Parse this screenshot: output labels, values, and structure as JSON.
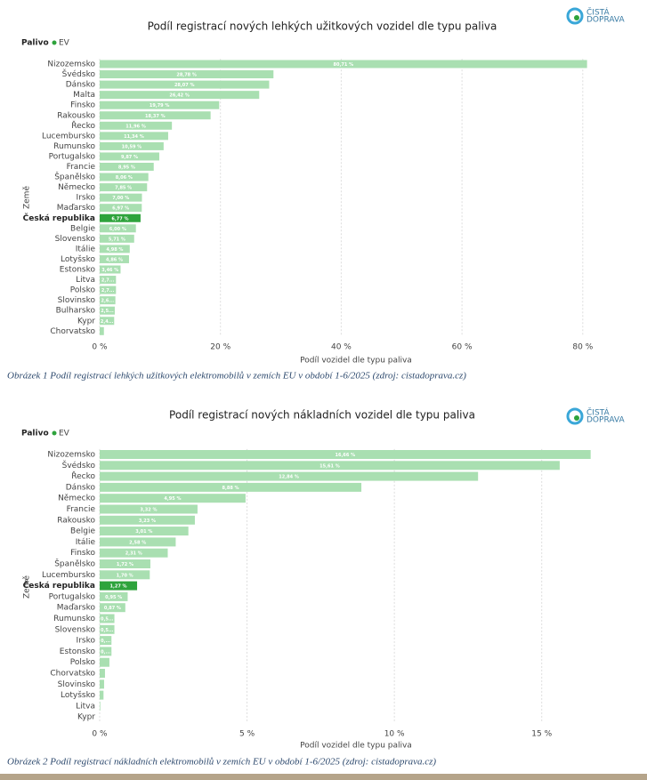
{
  "chart_data": [
    {
      "type": "bar",
      "orientation": "horizontal",
      "title": "Podíl registrací nových lehkých užitkových vozidel dle typu paliva",
      "legend_title": "Palivo",
      "logo": [
        "ČISTÁ",
        "DOPRAVA"
      ],
      "xlabel": "Podíl vozidel dle typu paliva",
      "ylabel": "Země",
      "categories": [
        "Nizozemsko",
        "Švédsko",
        "Dánsko",
        "Malta",
        "Finsko",
        "Rakousko",
        "Řecko",
        "Lucembursko",
        "Rumunsko",
        "Portugalsko",
        "Francie",
        "Španělsko",
        "Německo",
        "Irsko",
        "Maďarsko",
        "Česká republika",
        "Belgie",
        "Slovensko",
        "Itálie",
        "Lotyšsko",
        "Estonsko",
        "Litva",
        "Polsko",
        "Slovinsko",
        "Bulharsko",
        "Kypr",
        "Chorvatsko"
      ],
      "series": [
        {
          "name": "EV",
          "color": "#a9dfb1",
          "values": [
            80.71,
            28.78,
            28.07,
            26.42,
            19.79,
            18.37,
            11.96,
            11.34,
            10.59,
            9.87,
            8.95,
            8.06,
            7.85,
            7.0,
            6.97,
            6.77,
            6.0,
            5.71,
            4.98,
            4.86,
            3.46,
            2.7,
            2.7,
            2.6,
            2.5,
            2.4,
            0.7
          ],
          "value_labels": [
            "80,71 %",
            "28,78 %",
            "28,07 %",
            "26,42 %",
            "19,79 %",
            "18,37 %",
            "11,96 %",
            "11,34 %",
            "10,59 %",
            "9,87 %",
            "8,95 %",
            "8,06 %",
            "7,85 %",
            "7,00 %",
            "6,97 %",
            "6,77 %",
            "6,00 %",
            "5,71 %",
            "4,98 %",
            "4,86 %",
            "3,46 %",
            "2,7...",
            "2,7...",
            "2,6...",
            "2,5...",
            "2,4...",
            null
          ]
        }
      ],
      "highlight_category": "Česká republika",
      "highlight_color": "#2ea33c",
      "xlim": [
        0,
        81.5
      ],
      "xticks": [
        {
          "value": 0,
          "label": "0 %"
        },
        {
          "value": 20,
          "label": "20 %"
        },
        {
          "value": 40,
          "label": "40 %"
        },
        {
          "value": 60,
          "label": "60 %"
        },
        {
          "value": 80,
          "label": "80 %"
        }
      ],
      "grid": true,
      "caption": "Obrázek 1 Podíl registrací lehkých užitkových elektromobilů v zemích EU v období 1-6/2025 (zdroj: cistadoprava.cz)"
    },
    {
      "type": "bar",
      "orientation": "horizontal",
      "title": "Podíl registrací nových nákladních vozidel dle typu paliva",
      "legend_title": "Palivo",
      "logo": [
        "ČISTÁ",
        "DOPRAVA"
      ],
      "xlabel": "Podíl vozidel dle typu paliva",
      "ylabel": "Země",
      "categories": [
        "Nizozemsko",
        "Švédsko",
        "Řecko",
        "Dánsko",
        "Německo",
        "Francie",
        "Rakousko",
        "Belgie",
        "Itálie",
        "Finsko",
        "Španělsko",
        "Lucembursko",
        "Česká republika",
        "Portugalsko",
        "Maďarsko",
        "Rumunsko",
        "Slovensko",
        "Irsko",
        "Estonsko",
        "Polsko",
        "Chorvatsko",
        "Slovinsko",
        "Lotyšsko",
        "Litva",
        "Kypr"
      ],
      "series": [
        {
          "name": "EV",
          "color": "#a9dfb1",
          "values": [
            16.66,
            15.61,
            12.84,
            8.88,
            4.95,
            3.32,
            3.23,
            3.01,
            2.58,
            2.31,
            1.72,
            1.7,
            1.27,
            0.95,
            0.87,
            0.5,
            0.5,
            0.4,
            0.4,
            0.33,
            0.18,
            0.15,
            0.13,
            0.02,
            0
          ],
          "value_labels": [
            "16,66 %",
            "15,61 %",
            "12,84 %",
            "8,88 %",
            "4,95 %",
            "3,32 %",
            "3,23 %",
            "3,01 %",
            "2,58 %",
            "2,31 %",
            "1,72 %",
            "1,70 %",
            "1,27 %",
            "0,95 %",
            "0,87 %",
            "0,5...",
            "0,5...",
            "0,...",
            "0,...",
            null,
            null,
            null,
            null,
            null,
            null
          ]
        }
      ],
      "highlight_category": "Česká republika",
      "highlight_color": "#2ea33c",
      "xlim": [
        0,
        16.7
      ],
      "xticks": [
        {
          "value": 0,
          "label": "0 %"
        },
        {
          "value": 5,
          "label": "5 %"
        },
        {
          "value": 10,
          "label": "10 %"
        },
        {
          "value": 15,
          "label": "15 %"
        }
      ],
      "grid": true,
      "caption": "Obrázek 2 Podíl registrací nákladních elektromobilů v zemích EU v období 1-6/2025 (zdroj: cistadoprava.cz)"
    }
  ]
}
